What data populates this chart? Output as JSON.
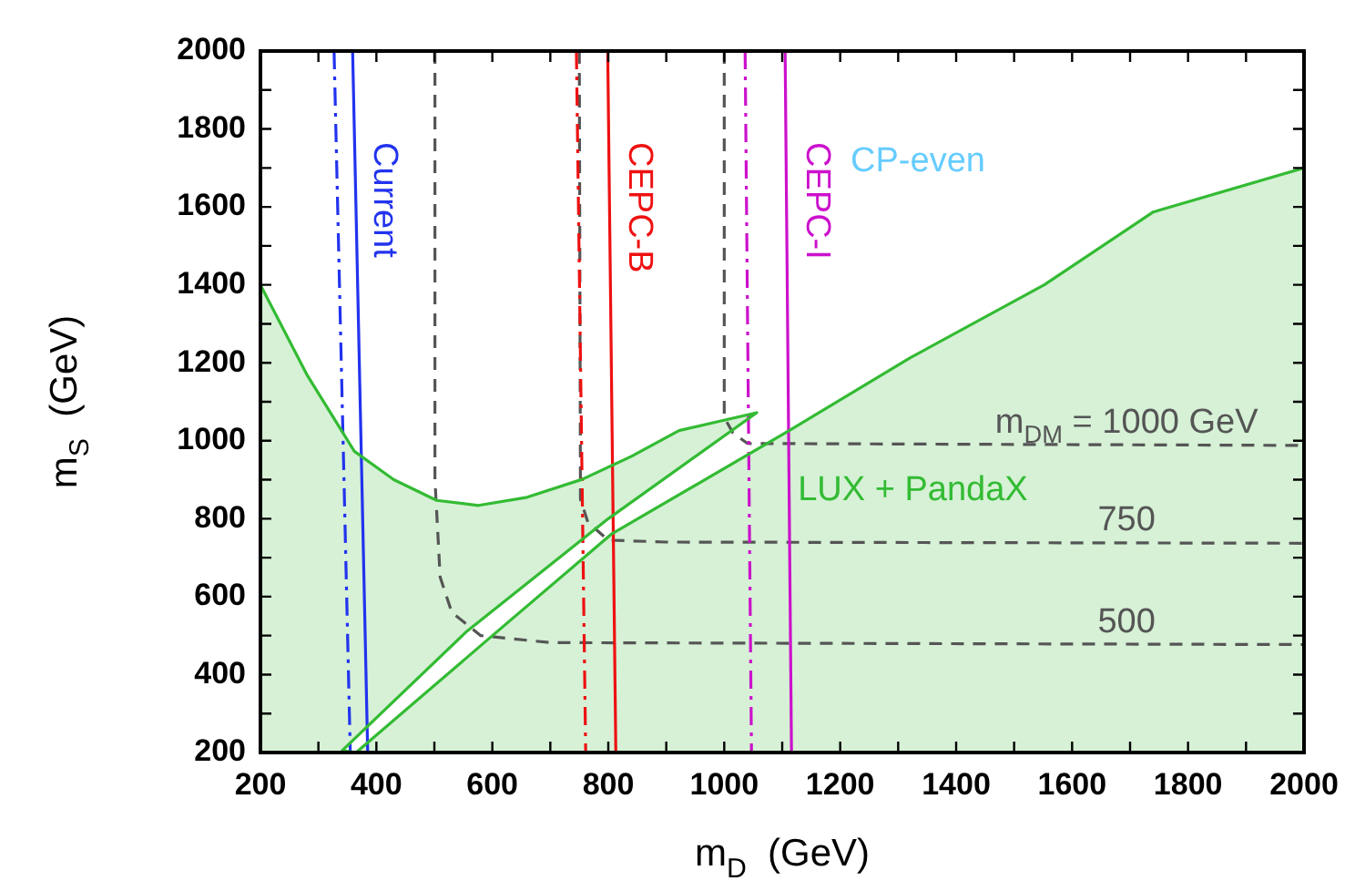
{
  "chart_data": {
    "type": "line",
    "xlabel": "m$_{D}$  (GeV)",
    "ylabel": "m$_{S}$  (GeV)",
    "xlim": [
      200,
      2000
    ],
    "ylim": [
      200,
      2000
    ],
    "xticks": [
      200,
      {
        "value": 300,
        "label": null
      },
      400,
      {
        "value": 500,
        "label": null
      },
      600,
      {
        "value": 700,
        "label": null
      },
      800,
      {
        "value": 900,
        "label": null
      },
      1000,
      {
        "value": 1100,
        "label": null
      },
      1200,
      {
        "value": 1300,
        "label": null
      },
      1400,
      {
        "value": 1500,
        "label": null
      },
      1600,
      {
        "value": 1700,
        "label": null
      },
      1800,
      {
        "value": 1900,
        "label": null
      },
      2000
    ],
    "yticks": [
      200,
      {
        "value": 300,
        "label": null
      },
      400,
      {
        "value": 500,
        "label": null
      },
      600,
      {
        "value": 700,
        "label": null
      },
      800,
      {
        "value": 900,
        "label": null
      },
      1000,
      {
        "value": 1100,
        "label": null
      },
      1200,
      {
        "value": 1300,
        "label": null
      },
      1400,
      {
        "value": 1500,
        "label": null
      },
      1600,
      {
        "value": 1700,
        "label": null
      },
      1800,
      {
        "value": 1900,
        "label": null
      },
      2000
    ],
    "legend": false,
    "grid": false,
    "marker": "none",
    "annotations": [
      "CP-even"
    ],
    "series": [
      {
        "type": "area",
        "name": "LUX + PandaX",
        "color": "#33bb33",
        "line_style": "solid",
        "x": [
          200,
          280,
          362,
          430,
          504,
          576,
          660,
          755,
          840,
          922,
          1056,
          800,
          556,
          341,
          365,
          597,
          805,
          1112,
          1321,
          1552,
          1740,
          2000
        ],
        "values": [
          1400,
          1170,
          973,
          900,
          847,
          834,
          855,
          901,
          960,
          1026,
          1072,
          800,
          511,
          205,
          200,
          496,
          760,
          1026,
          1213,
          1400,
          1587,
          1700
        ]
      },
      {
        "type": "line",
        "name": "Current",
        "color": "#2233ee",
        "line_style": "solid",
        "x": [
          359,
          385
        ],
        "values": [
          2000,
          200
        ]
      },
      {
        "type": "line",
        "color": "#2233ee",
        "line_style": "dashdot",
        "x": [
          327,
          355
        ],
        "values": [
          2000,
          200
        ]
      },
      {
        "type": "line",
        "name": "CEPC-B",
        "color": "#ee1111",
        "line_style": "solid",
        "x": [
          799,
          813
        ],
        "values": [
          2000,
          200
        ]
      },
      {
        "type": "line",
        "color": "#ee1111",
        "line_style": "dashdot",
        "x": [
          745,
          761
        ],
        "values": [
          2000,
          200
        ]
      },
      {
        "type": "line",
        "name": "CEPC-I",
        "color": "#cc11cc",
        "line_style": "solid",
        "x": [
          1105,
          1116
        ],
        "values": [
          2000,
          200
        ]
      },
      {
        "type": "line",
        "color": "#cc11cc",
        "line_style": "dashdot",
        "x": [
          1036,
          1047
        ],
        "values": [
          2000,
          200
        ]
      },
      {
        "type": "line",
        "name": "m$_{DM}$ = 1000 GeV",
        "color": "#555555",
        "line_style": "dashed",
        "x": [
          1000,
          1000,
          1015,
          1040,
          2000
        ],
        "values": [
          2000,
          1060,
          1020,
          993,
          988
        ]
      },
      {
        "type": "line",
        "name": "750",
        "color": "#555555",
        "line_style": "dashed",
        "x": [
          750,
          752,
          765,
          800,
          900,
          2000
        ],
        "values": [
          2000,
          850,
          790,
          745,
          740,
          737
        ]
      },
      {
        "type": "line",
        "name": "500",
        "color": "#555555",
        "line_style": "dashed",
        "x": [
          501,
          501,
          510,
          530,
          580,
          700,
          2000
        ],
        "values": [
          2000,
          900,
          650,
          560,
          500,
          482,
          477
        ]
      }
    ]
  }
}
